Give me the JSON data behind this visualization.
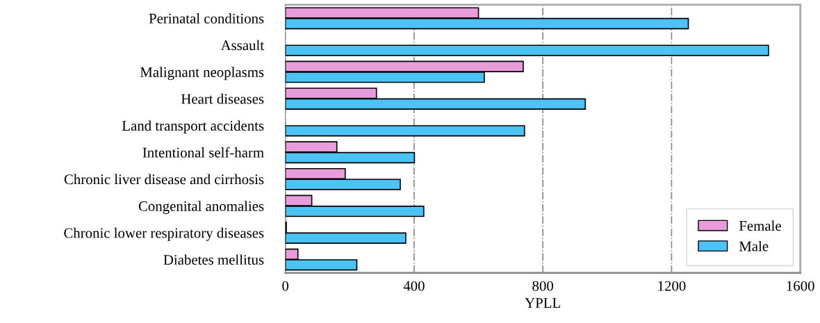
{
  "chart_data": {
    "type": "bar",
    "orientation": "horizontal",
    "xlabel": "YPLL",
    "categories": [
      "Perinatal conditions",
      "Assault",
      "Malignant neoplasms",
      "Heart diseases",
      "Land transport accidents",
      "Intentional self-harm",
      "Chronic liver disease and cirrhosis",
      "Congenital anomalies",
      "Chronic lower respiratory diseases",
      "Diabetes mellitus"
    ],
    "series": [
      {
        "name": "Female",
        "color": "#e89cdc",
        "values": [
          600,
          null,
          739,
          283,
          null,
          160,
          186,
          82,
          3,
          39
        ]
      },
      {
        "name": "Male",
        "color": "#4bc3f5",
        "values": [
          1252,
          1501,
          618,
          932,
          743,
          401,
          357,
          430,
          374,
          222
        ]
      }
    ],
    "xlim": [
      0,
      1600
    ],
    "xticks": [
      0,
      400,
      800,
      1200,
      1600
    ],
    "grid": "x",
    "legend": "bottom right"
  }
}
